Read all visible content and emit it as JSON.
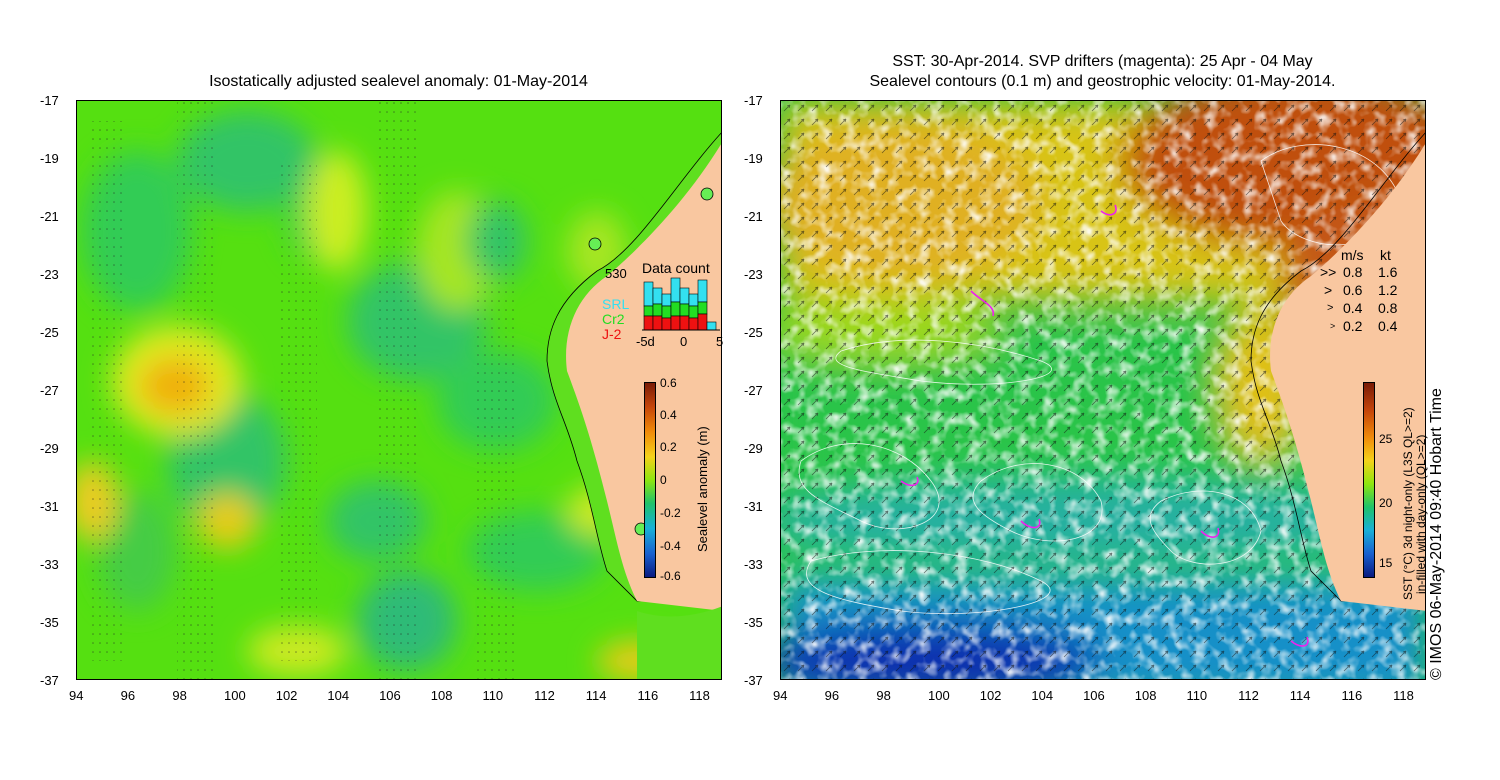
{
  "left_panel": {
    "title": "Isostatically adjusted sealevel anomaly: 01-May-2014",
    "x_ticks": [
      "94",
      "96",
      "98",
      "100",
      "102",
      "104",
      "106",
      "108",
      "110",
      "112",
      "114",
      "116",
      "118"
    ],
    "y_ticks": [
      "-17",
      "-19",
      "-21",
      "-23",
      "-25",
      "-27",
      "-29",
      "-31",
      "-33",
      "-35",
      "-37"
    ],
    "data_count": {
      "title": "Data count",
      "max_label": "530",
      "series": [
        {
          "name": "SRL",
          "color": "#33e0f0"
        },
        {
          "name": "Cr2",
          "color": "#22dd22"
        },
        {
          "name": "J-2",
          "color": "#ee1111"
        }
      ],
      "axis_labels": [
        "-5d",
        "0",
        "5"
      ]
    },
    "colorbar": {
      "label": "Sealevel anomaly (m)",
      "ticks": [
        "0.6",
        "0.4",
        "0.2",
        "0",
        "-0.2",
        "-0.4",
        "-0.6"
      ]
    }
  },
  "right_panel": {
    "title_line1": "SST: 30-Apr-2014. SVP drifters (magenta): 25 Apr - 04 May",
    "title_line2": "Sealevel contours (0.1 m) and geostrophic velocity: 01-May-2014.",
    "x_ticks": [
      "94",
      "96",
      "98",
      "100",
      "102",
      "104",
      "106",
      "108",
      "110",
      "112",
      "114",
      "116",
      "118"
    ],
    "y_ticks": [
      "-17",
      "-19",
      "-21",
      "-23",
      "-25",
      "-27",
      "-29",
      "-31",
      "-33",
      "-35",
      "-37"
    ],
    "velocity_legend": {
      "header_ms": "m/s",
      "header_kt": "kt",
      "rows": [
        {
          "ms": "0.8",
          "kt": "1.6"
        },
        {
          "ms": "0.6",
          "kt": "1.2"
        },
        {
          "ms": "0.4",
          "kt": "0.8"
        },
        {
          "ms": "0.2",
          "kt": "0.4"
        }
      ]
    },
    "colorbar": {
      "label_line1": "SST (°C) 3d night-only (L3S QL>=2)",
      "label_line2": "in-filled with day-only (QL>=2)",
      "ticks": [
        "25",
        "20",
        "15"
      ]
    },
    "credit": "© IMOS 06-May-2014 09:40 Hobart Time"
  }
}
